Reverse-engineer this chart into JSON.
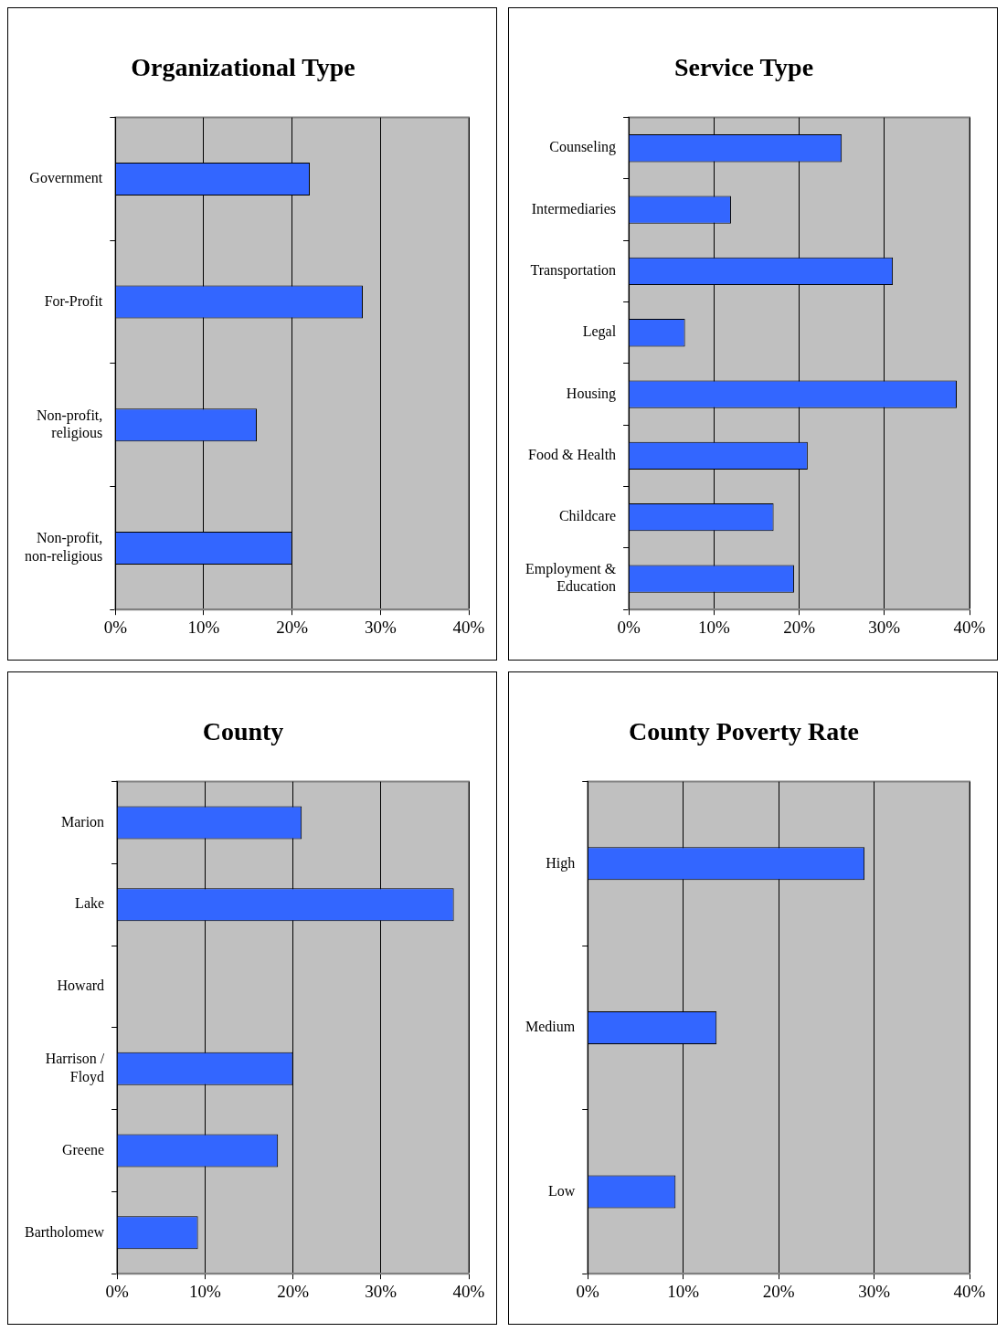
{
  "chart_data": [
    {
      "type": "bar",
      "orientation": "horizontal",
      "title": "Organizational Type",
      "categories": [
        "Government",
        "For-Profit",
        "Non-profit, religious",
        "Non-profit, non-religious"
      ],
      "values": [
        22,
        28,
        16,
        20
      ],
      "color": "#3366ff",
      "xlim": [
        0,
        40
      ],
      "xticks": [
        {
          "value": 0,
          "label": "0%"
        },
        {
          "value": 10,
          "label": "10%"
        },
        {
          "value": 20,
          "label": "20%"
        },
        {
          "value": 30,
          "label": "30%"
        },
        {
          "value": 40,
          "label": "40%"
        }
      ],
      "grid": "x",
      "legend": false
    },
    {
      "type": "bar",
      "orientation": "horizontal",
      "title": "Service Type",
      "categories": [
        "Counseling",
        "Intermediaries",
        "Transportation",
        "Legal",
        "Housing",
        "Food & Health",
        "Childcare",
        "Employment & Education"
      ],
      "values": [
        25,
        12,
        31,
        6.6,
        38.5,
        21,
        17,
        19.4
      ],
      "color": "#3366ff",
      "xlim": [
        0,
        40
      ],
      "xticks": [
        {
          "value": 0,
          "label": "0%"
        },
        {
          "value": 10,
          "label": "10%"
        },
        {
          "value": 20,
          "label": "20%"
        },
        {
          "value": 30,
          "label": "30%"
        },
        {
          "value": 40,
          "label": "40%"
        }
      ],
      "grid": "x",
      "legend": false
    },
    {
      "type": "bar",
      "orientation": "horizontal",
      "title": "County",
      "categories": [
        "Marion",
        "Lake",
        "Howard",
        "Harrison / Floyd",
        "Greene",
        "Bartholomew"
      ],
      "values": [
        21,
        38.3,
        0,
        20,
        18.3,
        9.2
      ],
      "color": "#3366ff",
      "xlim": [
        0,
        40
      ],
      "xticks": [
        {
          "value": 0,
          "label": "0%"
        },
        {
          "value": 10,
          "label": "10%"
        },
        {
          "value": 20,
          "label": "20%"
        },
        {
          "value": 30,
          "label": "30%"
        },
        {
          "value": 40,
          "label": "40%"
        }
      ],
      "grid": "x",
      "legend": false
    },
    {
      "type": "bar",
      "orientation": "horizontal",
      "title": "County Poverty Rate",
      "categories": [
        "High",
        "Medium",
        "Low"
      ],
      "values": [
        29,
        13.5,
        9.2
      ],
      "color": "#3366ff",
      "xlim": [
        0,
        40
      ],
      "xticks": [
        {
          "value": 0,
          "label": "0%"
        },
        {
          "value": 10,
          "label": "10%"
        },
        {
          "value": 20,
          "label": "20%"
        },
        {
          "value": 30,
          "label": "30%"
        },
        {
          "value": 40,
          "label": "40%"
        }
      ],
      "grid": "x",
      "legend": false
    }
  ]
}
